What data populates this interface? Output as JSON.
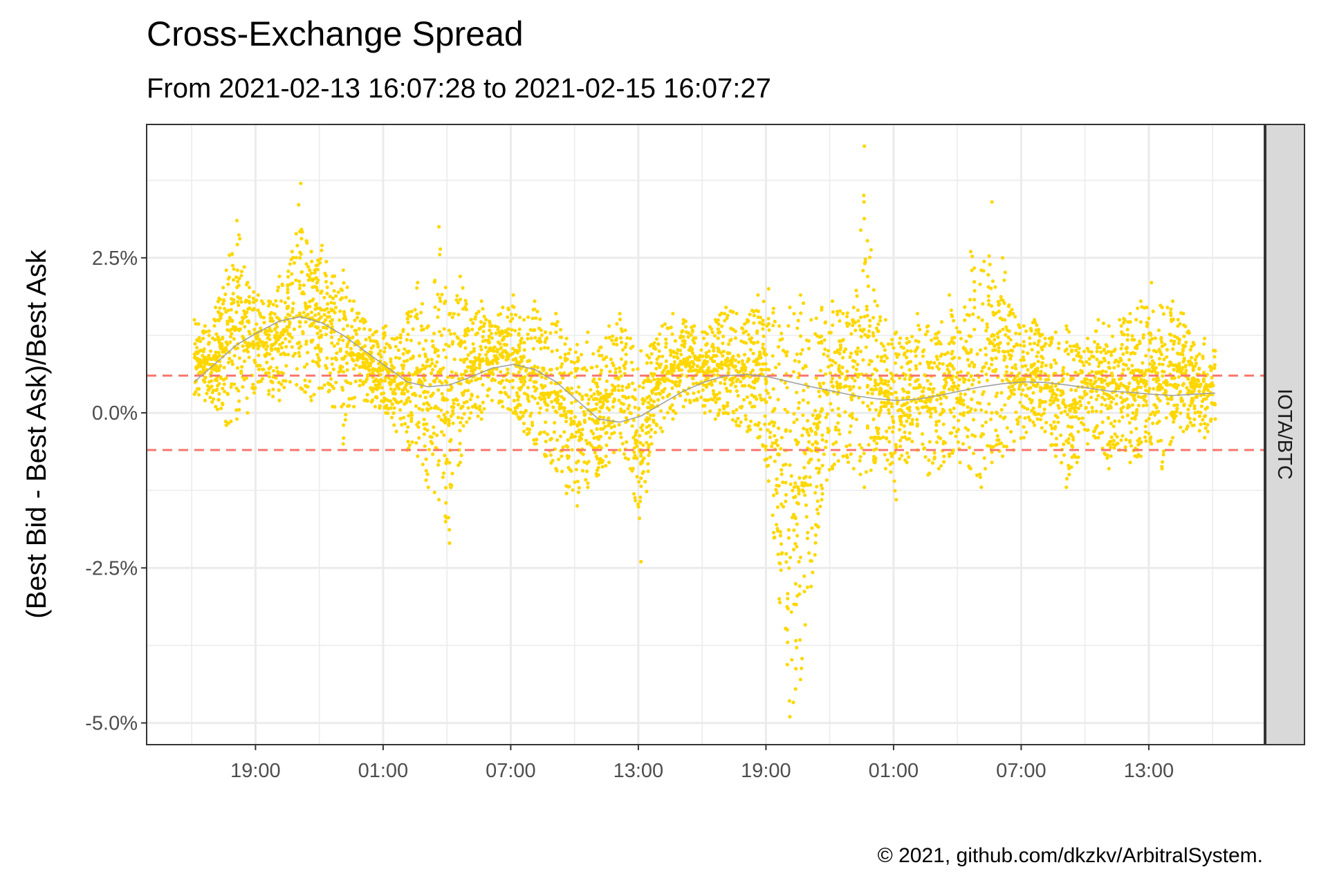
{
  "chart_data": {
    "type": "scatter",
    "title": "Cross-Exchange Spread",
    "subtitle": "From 2021-02-13 16:07:28 to 2021-02-15 16:07:27",
    "ylabel": "(Best Bid - Best Ask)/Best Ask",
    "xlabel": "",
    "facet_label": "IOTA/BTC",
    "caption": "© 2021, github.com/dkzkv/ArbitralSystem.",
    "x_range": [
      "2021-02-13 16:07:28",
      "2021-02-15 16:07:27"
    ],
    "x_ticks": [
      "19:00",
      "01:00",
      "07:00",
      "13:00",
      "19:00",
      "01:00",
      "07:00",
      "13:00"
    ],
    "x_tick_hours": [
      2.875,
      8.875,
      14.875,
      20.875,
      26.875,
      32.875,
      38.875,
      44.875
    ],
    "y_ticks": [
      "2.5%",
      "0.0%",
      "-2.5%",
      "-5.0%"
    ],
    "y_tick_values": [
      2.5,
      0.0,
      -2.5,
      -5.0
    ],
    "ylim": [
      -5.35,
      4.65
    ],
    "grid": true,
    "point_color": "#FFD700",
    "smooth_color": "#A0A0A0",
    "threshold_color": "#F8766D",
    "thresholds": [
      0.6,
      -0.6
    ],
    "hours_since_start": [
      0,
      0.5,
      1,
      1.5,
      2,
      2.5,
      3,
      3.5,
      4,
      4.5,
      5,
      5.5,
      6,
      6.5,
      7,
      7.5,
      8,
      8.5,
      9,
      9.5,
      10,
      10.5,
      11,
      11.5,
      12,
      12.5,
      13,
      13.5,
      14,
      14.5,
      15,
      15.5,
      16,
      16.5,
      17,
      17.5,
      18,
      18.5,
      19,
      19.5,
      20,
      20.5,
      21,
      21.5,
      22,
      22.5,
      23,
      23.5,
      24,
      24.5,
      25,
      25.5,
      26,
      26.5,
      27,
      27.5,
      28,
      28.5,
      29,
      29.5,
      30,
      30.5,
      31,
      31.5,
      32,
      32.5,
      33,
      33.5,
      34,
      34.5,
      35,
      35.5,
      36,
      36.5,
      37,
      37.5,
      38,
      38.5,
      39,
      39.5,
      40,
      40.5,
      41,
      41.5,
      42,
      42.5,
      43,
      43.5,
      44,
      44.5,
      45,
      45.5,
      46,
      46.5,
      47,
      47.5,
      48
    ],
    "spread_max": [
      1.5,
      1.4,
      1.7,
      2.3,
      3.1,
      2.1,
      1.9,
      1.8,
      2.2,
      2.4,
      3.7,
      2.6,
      2.7,
      2.2,
      2.3,
      1.8,
      1.5,
      1.3,
      1.4,
      1.2,
      1.6,
      2.1,
      1.4,
      3.0,
      1.6,
      2.2,
      1.5,
      1.8,
      1.4,
      1.7,
      1.9,
      1.5,
      1.8,
      1.3,
      1.6,
      1.2,
      1.1,
      1.3,
      1.0,
      1.4,
      1.6,
      1.2,
      1.0,
      1.1,
      1.4,
      1.6,
      1.5,
      1.4,
      1.3,
      1.5,
      1.7,
      1.6,
      1.5,
      1.9,
      2.0,
      1.4,
      1.7,
      1.9,
      1.5,
      1.7,
      1.8,
      1.6,
      1.7,
      4.3,
      1.8,
      1.5,
      1.3,
      1.2,
      1.6,
      1.4,
      1.3,
      1.9,
      1.3,
      2.6,
      2.3,
      3.4,
      2.5,
      1.6,
      1.4,
      1.5,
      1.2,
      1.3,
      1.4,
      1.1,
      1.2,
      1.5,
      1.4,
      1.5,
      1.6,
      1.8,
      2.1,
      1.7,
      1.8,
      1.6,
      1.1,
      1.2,
      1.0
    ],
    "spread_min": [
      0.3,
      0.2,
      0.1,
      -0.2,
      -0.1,
      0.0,
      0.5,
      0.3,
      0.2,
      0.5,
      0.4,
      0.2,
      0.4,
      0.1,
      -0.5,
      0.1,
      0.2,
      0.1,
      0.0,
      -0.3,
      -0.6,
      -0.7,
      -1.2,
      -1.4,
      -2.1,
      -0.8,
      0.0,
      -0.1,
      0.2,
      0.1,
      0.0,
      -0.3,
      -0.5,
      -0.7,
      -0.9,
      -1.3,
      -1.5,
      -1.2,
      -1.0,
      -0.8,
      -0.6,
      -0.9,
      -2.4,
      -0.5,
      -0.3,
      -0.1,
      0.1,
      0.2,
      0.0,
      -0.1,
      0.0,
      -0.2,
      -0.3,
      -0.4,
      -1.1,
      -3.0,
      -4.9,
      -4.3,
      -2.8,
      -1.4,
      -0.9,
      -0.7,
      -0.9,
      -1.2,
      -0.8,
      -0.9,
      -1.4,
      -0.8,
      -0.6,
      -1.0,
      -0.9,
      -0.7,
      -0.8,
      -0.9,
      -1.2,
      -0.8,
      -0.7,
      -0.6,
      -0.4,
      -0.2,
      -0.3,
      -0.7,
      -1.2,
      -0.8,
      -0.5,
      -0.4,
      -0.9,
      -0.6,
      -0.8,
      -0.7,
      -0.5,
      -0.9,
      -0.4,
      -0.3,
      -0.2,
      -0.4,
      -0.1
    ],
    "smooth_hours": [
      0,
      1,
      2,
      3,
      4,
      5,
      6,
      7,
      8,
      9,
      10,
      11,
      12,
      13,
      14,
      15,
      16,
      17,
      18,
      19,
      20,
      21,
      22,
      23,
      24,
      25,
      26,
      27,
      28,
      29,
      30,
      31,
      32,
      33,
      34,
      35,
      36,
      37,
      38,
      39,
      40,
      41,
      42,
      43,
      44,
      45,
      46,
      47,
      48
    ],
    "smooth_values": [
      0.5,
      0.8,
      1.1,
      1.3,
      1.48,
      1.55,
      1.45,
      1.25,
      1.0,
      0.75,
      0.5,
      0.42,
      0.45,
      0.58,
      0.72,
      0.78,
      0.7,
      0.5,
      0.2,
      -0.1,
      -0.15,
      -0.05,
      0.15,
      0.35,
      0.5,
      0.6,
      0.62,
      0.58,
      0.5,
      0.42,
      0.35,
      0.28,
      0.23,
      0.2,
      0.22,
      0.28,
      0.35,
      0.42,
      0.47,
      0.5,
      0.49,
      0.45,
      0.4,
      0.35,
      0.33,
      0.3,
      0.28,
      0.3,
      0.32
    ]
  }
}
